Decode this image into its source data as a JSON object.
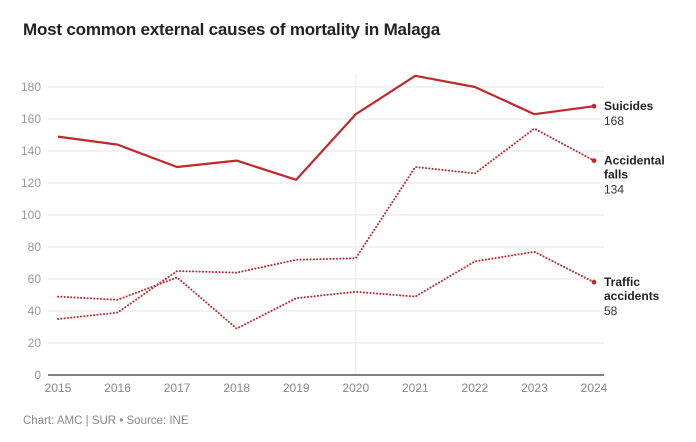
{
  "title": "Most common external causes of mortality in Malaga",
  "footer": "Chart: AMC | SUR • Source: INE",
  "chart_data": {
    "type": "line",
    "title": "Most common external causes of mortality in Malaga",
    "xlabel": "",
    "ylabel": "",
    "x": [
      "2015",
      "2016",
      "2017",
      "2018",
      "2019",
      "2020",
      "2021",
      "2022",
      "2023",
      "2024"
    ],
    "ylim": [
      0,
      190
    ],
    "yticks": [
      0,
      20,
      40,
      60,
      80,
      100,
      120,
      140,
      160,
      180
    ],
    "grid": true,
    "highlight_x": "2020",
    "line_color": "#c0282d",
    "series": [
      {
        "name": "Suicides",
        "label_lines": [
          "Suicides"
        ],
        "style": "solid",
        "end_label": "168",
        "values": [
          149,
          144,
          130,
          134,
          122,
          163,
          187,
          180,
          163,
          168
        ]
      },
      {
        "name": "Accidental falls",
        "label_lines": [
          "Accidental",
          "falls"
        ],
        "style": "dotted",
        "end_label": "134",
        "values": [
          35,
          39,
          65,
          64,
          72,
          73,
          130,
          126,
          154,
          134
        ]
      },
      {
        "name": "Traffic accidents",
        "label_lines": [
          "Traffic",
          "accidents"
        ],
        "style": "dotted",
        "end_label": "58",
        "values": [
          49,
          47,
          61,
          29,
          48,
          52,
          49,
          71,
          77,
          58
        ]
      }
    ]
  }
}
